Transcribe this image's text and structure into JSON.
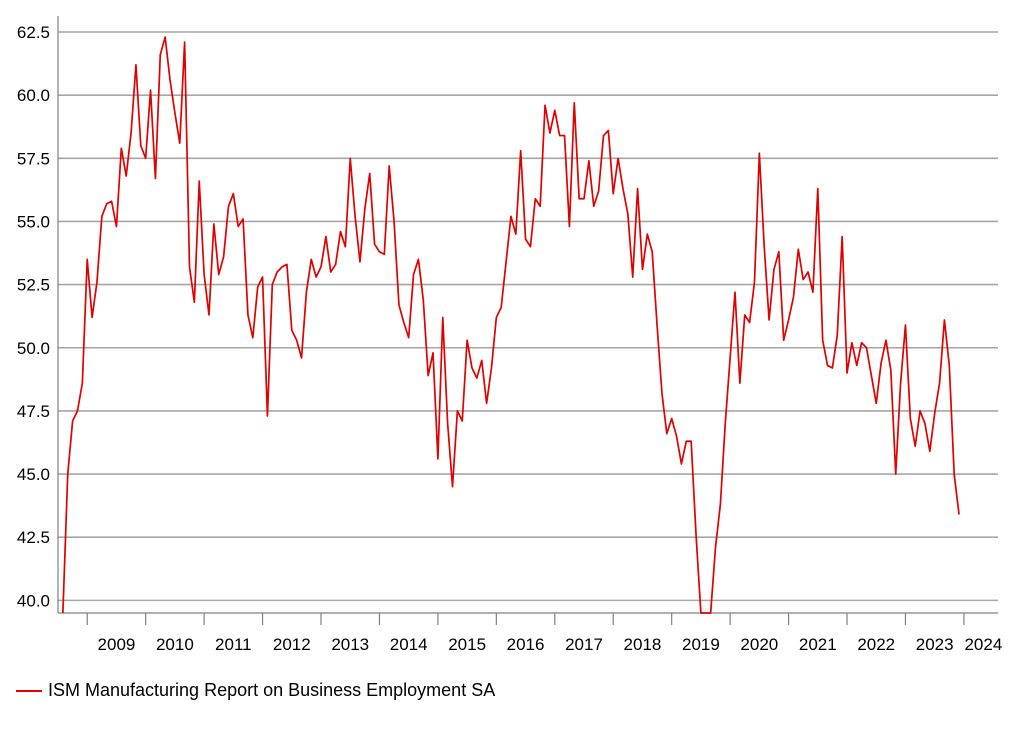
{
  "chart_data": {
    "type": "line",
    "title": "",
    "xlabel": "",
    "ylabel": "",
    "ylim": [
      39.5,
      62.5
    ],
    "xlim": [
      "2008-07",
      "2024-08"
    ],
    "yticks": [
      "40.0",
      "42.5",
      "45.0",
      "47.5",
      "50.0",
      "52.5",
      "55.0",
      "57.5",
      "60.0",
      "62.5"
    ],
    "xticks": [
      "2009",
      "2010",
      "2011",
      "2012",
      "2013",
      "2014",
      "2015",
      "2016",
      "2017",
      "2018",
      "2019",
      "2020",
      "2021",
      "2022",
      "2023",
      "2024"
    ],
    "grid": "horizontal",
    "legend_position": "bottom-left",
    "series": [
      {
        "name": "ISM Manufacturing Report on Business Employment SA",
        "color": "#e00000",
        "points": [
          [
            "2008-08",
            39.5
          ],
          [
            "2008-09",
            45.0
          ],
          [
            "2008-10",
            47.1
          ],
          [
            "2008-11",
            47.5
          ],
          [
            "2008-12",
            48.6
          ],
          [
            "2009-01",
            53.5
          ],
          [
            "2009-02",
            51.2
          ],
          [
            "2009-03",
            52.6
          ],
          [
            "2009-04",
            55.2
          ],
          [
            "2009-05",
            55.7
          ],
          [
            "2009-06",
            55.8
          ],
          [
            "2009-07",
            54.8
          ],
          [
            "2009-08",
            57.9
          ],
          [
            "2009-09",
            56.8
          ],
          [
            "2009-10",
            58.5
          ],
          [
            "2009-11",
            61.2
          ],
          [
            "2009-12",
            58.0
          ],
          [
            "2010-01",
            57.5
          ],
          [
            "2010-02",
            60.2
          ],
          [
            "2010-03",
            56.7
          ],
          [
            "2010-04",
            61.6
          ],
          [
            "2010-05",
            62.3
          ],
          [
            "2010-06",
            60.6
          ],
          [
            "2010-07",
            59.3
          ],
          [
            "2010-08",
            58.1
          ],
          [
            "2010-09",
            62.1
          ],
          [
            "2010-10",
            53.2
          ],
          [
            "2010-11",
            51.8
          ],
          [
            "2010-12",
            56.6
          ],
          [
            "2011-01",
            52.9
          ],
          [
            "2011-02",
            51.3
          ],
          [
            "2011-03",
            54.9
          ],
          [
            "2011-04",
            52.9
          ],
          [
            "2011-05",
            53.6
          ],
          [
            "2011-06",
            55.6
          ],
          [
            "2011-07",
            56.1
          ],
          [
            "2011-08",
            54.8
          ],
          [
            "2011-09",
            55.1
          ],
          [
            "2011-10",
            51.3
          ],
          [
            "2011-11",
            50.4
          ],
          [
            "2011-12",
            52.4
          ],
          [
            "2012-01",
            52.8
          ],
          [
            "2012-02",
            47.3
          ],
          [
            "2012-03",
            52.5
          ],
          [
            "2012-04",
            53.0
          ],
          [
            "2012-05",
            53.2
          ],
          [
            "2012-06",
            53.3
          ],
          [
            "2012-07",
            50.7
          ],
          [
            "2012-08",
            50.3
          ],
          [
            "2012-09",
            49.6
          ],
          [
            "2012-10",
            52.2
          ],
          [
            "2012-11",
            53.5
          ],
          [
            "2012-12",
            52.8
          ],
          [
            "2013-01",
            53.2
          ],
          [
            "2013-02",
            54.4
          ],
          [
            "2013-03",
            53.0
          ],
          [
            "2013-04",
            53.3
          ],
          [
            "2013-05",
            54.6
          ],
          [
            "2013-06",
            54.0
          ],
          [
            "2013-07",
            57.5
          ],
          [
            "2013-08",
            55.2
          ],
          [
            "2013-09",
            53.4
          ],
          [
            "2013-10",
            55.5
          ],
          [
            "2013-11",
            56.9
          ],
          [
            "2013-12",
            54.1
          ],
          [
            "2014-01",
            53.8
          ],
          [
            "2014-02",
            53.7
          ],
          [
            "2014-03",
            57.2
          ],
          [
            "2014-04",
            55.0
          ],
          [
            "2014-05",
            51.7
          ],
          [
            "2014-06",
            51.0
          ],
          [
            "2014-07",
            50.4
          ],
          [
            "2014-08",
            52.9
          ],
          [
            "2014-09",
            53.5
          ],
          [
            "2014-10",
            51.9
          ],
          [
            "2014-11",
            48.9
          ],
          [
            "2014-12",
            49.8
          ],
          [
            "2015-01",
            45.6
          ],
          [
            "2015-02",
            51.2
          ],
          [
            "2015-03",
            47.0
          ],
          [
            "2015-04",
            44.5
          ],
          [
            "2015-05",
            47.5
          ],
          [
            "2015-06",
            47.1
          ],
          [
            "2015-07",
            50.3
          ],
          [
            "2015-08",
            49.2
          ],
          [
            "2015-09",
            48.8
          ],
          [
            "2015-10",
            49.5
          ],
          [
            "2015-11",
            47.8
          ],
          [
            "2015-12",
            49.2
          ],
          [
            "2016-01",
            51.2
          ],
          [
            "2016-02",
            51.6
          ],
          [
            "2016-03",
            53.4
          ],
          [
            "2016-04",
            55.2
          ],
          [
            "2016-05",
            54.5
          ],
          [
            "2016-06",
            57.8
          ],
          [
            "2016-07",
            54.3
          ],
          [
            "2016-08",
            54.0
          ],
          [
            "2016-09",
            55.9
          ],
          [
            "2016-10",
            55.6
          ],
          [
            "2016-11",
            59.6
          ],
          [
            "2016-12",
            58.5
          ],
          [
            "2017-01",
            59.4
          ],
          [
            "2017-02",
            58.4
          ],
          [
            "2017-03",
            58.4
          ],
          [
            "2017-04",
            54.8
          ],
          [
            "2017-05",
            59.7
          ],
          [
            "2017-06",
            55.9
          ],
          [
            "2017-07",
            55.9
          ],
          [
            "2017-08",
            57.4
          ],
          [
            "2017-09",
            55.6
          ],
          [
            "2017-10",
            56.2
          ],
          [
            "2017-11",
            58.4
          ],
          [
            "2017-12",
            58.6
          ],
          [
            "2018-01",
            56.1
          ],
          [
            "2018-02",
            57.5
          ],
          [
            "2018-03",
            56.3
          ],
          [
            "2018-04",
            55.3
          ],
          [
            "2018-05",
            52.8
          ],
          [
            "2018-06",
            56.3
          ],
          [
            "2018-07",
            53.1
          ],
          [
            "2018-08",
            54.5
          ],
          [
            "2018-09",
            53.8
          ],
          [
            "2018-10",
            50.9
          ],
          [
            "2018-11",
            48.2
          ],
          [
            "2018-12",
            46.6
          ],
          [
            "2019-01",
            47.2
          ],
          [
            "2019-02",
            46.5
          ],
          [
            "2019-03",
            45.4
          ],
          [
            "2019-04",
            46.3
          ],
          [
            "2019-05",
            46.3
          ],
          [
            "2019-06",
            42.6
          ],
          [
            "2019-07",
            39.5
          ],
          [
            "2019-09",
            39.5
          ],
          [
            "2019-10",
            42.1
          ],
          [
            "2019-11",
            43.8
          ],
          [
            "2019-12",
            47.0
          ],
          [
            "2020-01",
            49.6
          ],
          [
            "2020-02",
            52.2
          ],
          [
            "2020-03",
            48.6
          ],
          [
            "2020-04",
            51.3
          ],
          [
            "2020-05",
            51.0
          ],
          [
            "2020-06",
            52.6
          ],
          [
            "2020-07",
            57.7
          ],
          [
            "2020-08",
            54.0
          ],
          [
            "2020-09",
            51.1
          ],
          [
            "2020-10",
            53.1
          ],
          [
            "2020-11",
            53.8
          ],
          [
            "2020-12",
            50.3
          ],
          [
            "2021-01",
            51.1
          ],
          [
            "2021-02",
            52.0
          ],
          [
            "2021-03",
            53.9
          ],
          [
            "2021-04",
            52.7
          ],
          [
            "2021-05",
            53.0
          ],
          [
            "2021-06",
            52.2
          ],
          [
            "2021-07",
            56.3
          ],
          [
            "2021-08",
            50.3
          ],
          [
            "2021-09",
            49.3
          ],
          [
            "2021-10",
            49.2
          ],
          [
            "2021-11",
            50.5
          ],
          [
            "2021-12",
            54.4
          ],
          [
            "2022-01",
            49.0
          ],
          [
            "2022-02",
            50.2
          ],
          [
            "2022-03",
            49.3
          ],
          [
            "2022-04",
            50.2
          ],
          [
            "2022-05",
            50.0
          ],
          [
            "2022-06",
            48.9
          ],
          [
            "2022-07",
            47.8
          ],
          [
            "2022-08",
            49.4
          ],
          [
            "2022-09",
            50.3
          ],
          [
            "2022-10",
            49.1
          ],
          [
            "2022-11",
            45.0
          ],
          [
            "2022-12",
            48.6
          ],
          [
            "2023-01",
            50.9
          ],
          [
            "2023-02",
            47.2
          ],
          [
            "2023-03",
            46.1
          ],
          [
            "2023-04",
            47.5
          ],
          [
            "2023-05",
            47.0
          ],
          [
            "2023-06",
            45.9
          ],
          [
            "2023-07",
            47.4
          ],
          [
            "2023-08",
            48.6
          ],
          [
            "2023-09",
            51.1
          ],
          [
            "2023-10",
            49.3
          ],
          [
            "2023-11",
            45.0
          ],
          [
            "2023-12",
            43.4
          ]
        ]
      }
    ]
  },
  "legend": {
    "label": "ISM Manufacturing Report on Business Employment SA",
    "color": "#e00000"
  }
}
